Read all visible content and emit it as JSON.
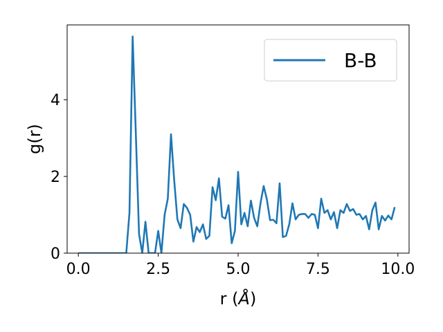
{
  "chart_data": {
    "type": "line",
    "xlabel_base": "r (",
    "xlabel_unit": "Å",
    "xlabel_close": ")",
    "ylabel": "g(r)",
    "xlim": [
      -0.35,
      10.35
    ],
    "ylim": [
      0,
      5.95
    ],
    "xticks": [
      0.0,
      2.5,
      5.0,
      7.5,
      10.0
    ],
    "xtick_labels": [
      "0.0",
      "2.5",
      "5.0",
      "7.5",
      "10.0"
    ],
    "yticks": [
      0,
      2,
      4
    ],
    "ytick_labels": [
      "0",
      "2",
      "4"
    ],
    "grid": false,
    "legend_position": "top-right",
    "series": [
      {
        "name": "B-B",
        "color": "#1f77b4",
        "x": [
          0.0,
          0.1,
          0.2,
          0.3,
          0.4,
          0.5,
          0.6,
          0.7,
          0.8,
          0.9,
          1.0,
          1.1,
          1.2,
          1.3,
          1.4,
          1.5,
          1.6,
          1.7,
          1.8,
          1.9,
          2.0,
          2.1,
          2.2,
          2.3,
          2.4,
          2.5,
          2.6,
          2.7,
          2.8,
          2.9,
          3.0,
          3.1,
          3.2,
          3.3,
          3.4,
          3.5,
          3.6,
          3.7,
          3.8,
          3.9,
          4.0,
          4.1,
          4.2,
          4.3,
          4.4,
          4.5,
          4.6,
          4.7,
          4.8,
          4.9,
          5.0,
          5.1,
          5.2,
          5.3,
          5.4,
          5.5,
          5.6,
          5.7,
          5.8,
          5.9,
          6.0,
          6.1,
          6.2,
          6.3,
          6.4,
          6.5,
          6.6,
          6.7,
          6.8,
          6.9,
          7.0,
          7.1,
          7.2,
          7.3,
          7.4,
          7.5,
          7.6,
          7.7,
          7.8,
          7.9,
          8.0,
          8.1,
          8.2,
          8.3,
          8.4,
          8.5,
          8.6,
          8.7,
          8.8,
          8.9,
          9.0,
          9.1,
          9.2,
          9.3,
          9.4,
          9.5,
          9.6,
          9.7,
          9.8,
          9.9
        ],
        "y": [
          0,
          0,
          0,
          0,
          0,
          0,
          0,
          0,
          0,
          0,
          0,
          0,
          0,
          0,
          0,
          0,
          1.05,
          5.65,
          3.1,
          0.5,
          0.0,
          0.82,
          0.0,
          0.0,
          0.0,
          0.58,
          0.0,
          1.0,
          1.42,
          3.1,
          1.9,
          0.88,
          0.65,
          1.28,
          1.18,
          1.0,
          0.3,
          0.68,
          0.55,
          0.75,
          0.37,
          0.45,
          1.72,
          1.38,
          1.95,
          0.95,
          0.9,
          1.25,
          0.26,
          0.58,
          2.12,
          0.75,
          1.05,
          0.7,
          1.37,
          0.92,
          0.7,
          1.3,
          1.75,
          1.4,
          0.86,
          0.87,
          0.78,
          1.82,
          0.42,
          0.45,
          0.75,
          1.3,
          0.88,
          1.0,
          1.02,
          1.02,
          0.92,
          1.02,
          1.0,
          0.65,
          1.42,
          1.05,
          1.12,
          0.88,
          1.07,
          0.65,
          1.12,
          1.05,
          1.28,
          1.1,
          1.15,
          1.0,
          1.02,
          0.88,
          0.97,
          0.62,
          1.12,
          1.32,
          0.62,
          0.97,
          0.85,
          0.98,
          0.88,
          1.2
        ]
      }
    ]
  }
}
